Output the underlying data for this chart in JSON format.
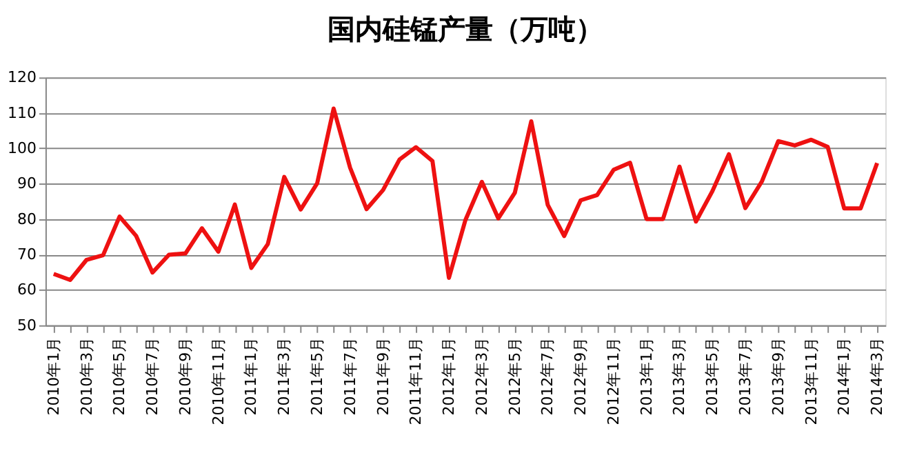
{
  "chart_data": {
    "type": "line",
    "title": "国内硅锰产量（万吨）",
    "categories": [
      "2010年1月",
      null,
      "2010年3月",
      null,
      "2010年5月",
      null,
      "2010年7月",
      null,
      "2010年9月",
      null,
      "2010年11月",
      null,
      "2011年1月",
      null,
      "2011年3月",
      null,
      "2011年5月",
      null,
      "2011年7月",
      null,
      "2011年9月",
      null,
      "2011年11月",
      null,
      "2012年1月",
      null,
      "2012年3月",
      null,
      "2012年5月",
      null,
      "2012年7月",
      null,
      "2012年9月",
      null,
      "2012年11月",
      null,
      "2013年1月",
      null,
      "2013年3月",
      null,
      "2013年5月",
      null,
      "2013年7月",
      null,
      "2013年9月",
      null,
      "2013年11月",
      null,
      "2014年1月",
      null,
      "2014年3月"
    ],
    "series": [
      {
        "color": "#ee1111",
        "values": [
          64.5,
          62.8,
          68.5,
          69.8,
          80.7,
          75.3,
          64.9,
          69.9,
          70.3,
          77.4,
          70.8,
          84.1,
          66.2,
          72.9,
          91.9,
          82.7,
          90.1,
          111.2,
          94.5,
          82.8,
          88.2,
          96.8,
          100.3,
          96.4,
          63.4,
          79.7,
          90.5,
          80.2,
          87.4,
          107.6,
          84.0,
          75.2,
          85.3,
          86.8,
          93.9,
          95.9,
          80.0,
          80.0,
          94.8,
          79.3,
          87.9,
          98.3,
          83.1,
          90.6,
          102.0,
          100.8,
          102.4,
          100.4,
          83.0,
          83.0,
          95.8
        ]
      }
    ],
    "ylim": [
      50,
      120
    ],
    "yticks": [
      50,
      60,
      70,
      80,
      90,
      100,
      110,
      120
    ],
    "grid": "y",
    "legend": false,
    "marker": "none",
    "line_style": "solid"
  }
}
